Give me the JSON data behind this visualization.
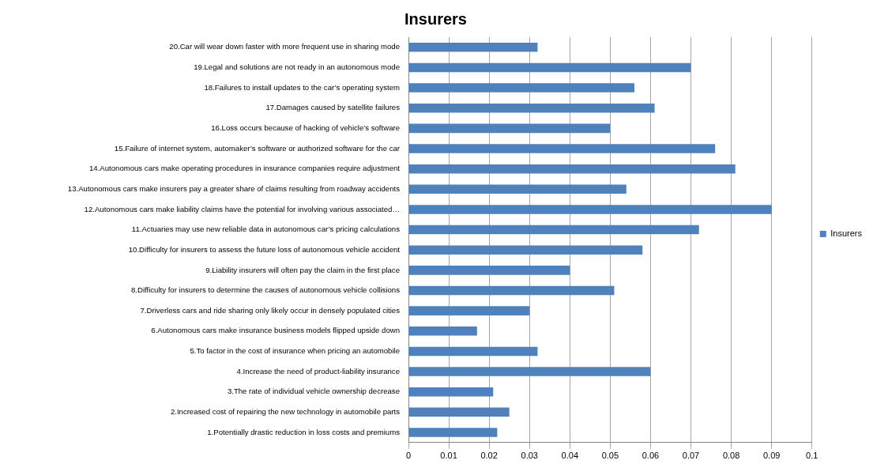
{
  "chart_data": {
    "type": "bar",
    "orientation": "horizontal",
    "title": "Insurers",
    "categories": [
      "20.Car will wear down faster with more frequent use in sharing mode",
      "19.Legal and solutions are not ready in an autonomous mode",
      "18.Failures to install updates to the car’s operating system",
      "17.Damages caused by satellite failures",
      "16.Loss occurs because of hacking of vehicle’s software",
      "15.Failure of internet system, automaker’s software or authorized software for the car",
      "14.Autonomous cars make operating procedures in insurance companies require adjustment",
      "13.Autonomous cars make insurers pay a greater share of claims resulting from roadway accidents",
      "12.Autonomous cars make liability claims have the potential for involving various associated…",
      "11.Actuaries may use new reliable data in autonomous car’s pricing calculations",
      "10.Difficulty for insurers to assess the future loss of autonomous vehicle accident",
      "9.Liability insurers will often pay the claim in the first place",
      "8.Difficulty for insurers to determine the causes of autonomous vehicle collisions",
      "7.Driverless cars and ride sharing only likely occur in densely populated cities",
      "6.Autonomous cars make insurance business models flipped upside down",
      "5.To factor in the cost of insurance when pricing an automobile",
      "4.Increase the need of product-liability insurance",
      "3.The rate of individual vehicle ownership decrease",
      "2.Increased cost of repairing the new technology in automobile parts",
      "1.Potentially drastic reduction in loss costs and premiums"
    ],
    "series": [
      {
        "name": "Insurers",
        "color": "#4f81bd",
        "values": [
          0.032,
          0.07,
          0.056,
          0.061,
          0.05,
          0.076,
          0.081,
          0.054,
          0.09,
          0.072,
          0.058,
          0.04,
          0.051,
          0.03,
          0.017,
          0.032,
          0.06,
          0.021,
          0.025,
          0.022
        ]
      }
    ],
    "xlim": [
      0,
      0.1
    ],
    "xticks": [
      0,
      0.01,
      0.02,
      0.03,
      0.04,
      0.05,
      0.06,
      0.07,
      0.08,
      0.09,
      0.1
    ],
    "grid": "x",
    "legend": "right"
  }
}
